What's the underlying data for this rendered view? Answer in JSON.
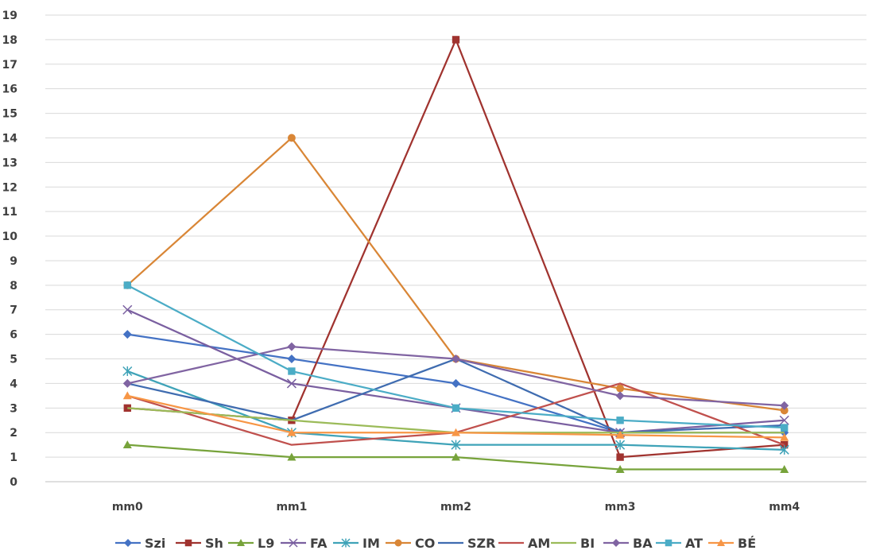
{
  "chart_data": {
    "type": "line",
    "title": "",
    "xlabel": "",
    "ylabel": "",
    "categories": [
      "mm0",
      "mm1",
      "mm2",
      "mm3",
      "mm4"
    ],
    "ylim": [
      0,
      19
    ],
    "ytick_step": 1,
    "grid": true,
    "legend_position": "bottom",
    "series": [
      {
        "name": "Szi",
        "values": [
          6,
          5,
          4,
          2,
          2
        ],
        "color": "#4472C4",
        "marker": "diamond"
      },
      {
        "name": "Sh",
        "values": [
          3,
          2.5,
          18,
          1,
          1.5
        ],
        "color": "#A0332F",
        "marker": "square"
      },
      {
        "name": "L9",
        "values": [
          1.5,
          1,
          1,
          0.5,
          0.5
        ],
        "color": "#77A33B",
        "marker": "triangle"
      },
      {
        "name": "FA",
        "values": [
          7,
          4,
          3,
          2,
          2.5
        ],
        "color": "#7A5FA0",
        "marker": "x"
      },
      {
        "name": "IM",
        "values": [
          4.5,
          2,
          1.5,
          1.5,
          1.3
        ],
        "color": "#3FA3B8",
        "marker": "star"
      },
      {
        "name": "CO",
        "values": [
          8,
          14,
          5,
          3.8,
          2.9
        ],
        "color": "#D98636",
        "marker": "circle"
      },
      {
        "name": "SZR",
        "values": [
          4,
          2.5,
          5,
          2,
          2.3
        ],
        "color": "#3F6CB0",
        "marker": "none"
      },
      {
        "name": "AM",
        "values": [
          3.5,
          1.5,
          2,
          4,
          1.5
        ],
        "color": "#C0504D",
        "marker": "none"
      },
      {
        "name": "BI",
        "values": [
          3,
          2.5,
          2,
          2,
          2
        ],
        "color": "#9BBB59",
        "marker": "none"
      },
      {
        "name": "BA",
        "values": [
          4,
          5.5,
          5,
          3.5,
          3.1
        ],
        "color": "#8064A2",
        "marker": "diamond"
      },
      {
        "name": "AT",
        "values": [
          8,
          4.5,
          3,
          2.5,
          2.2
        ],
        "color": "#4BACC6",
        "marker": "square"
      },
      {
        "name": "BÉ",
        "values": [
          3.5,
          2,
          2,
          1.9,
          1.8
        ],
        "color": "#F79646",
        "marker": "triangle"
      }
    ]
  }
}
